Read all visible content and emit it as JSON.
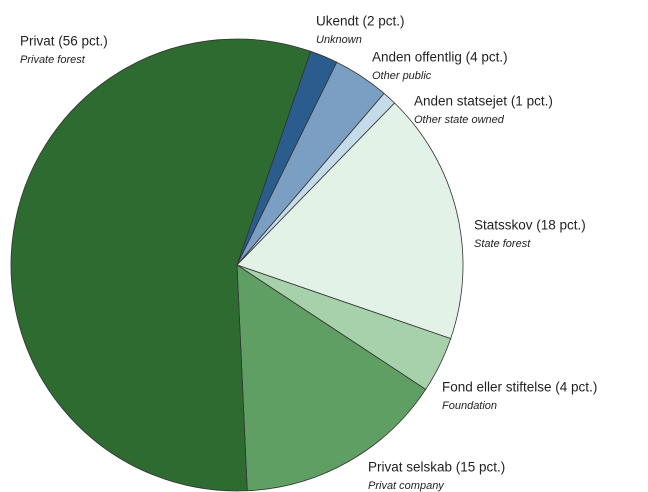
{
  "chart_data": {
    "type": "pie",
    "categories": [
      "Ukendt (2 pct.)",
      "Anden offentlig (4 pct.)",
      "Anden statsejet (1 pct.)",
      "Statsskov (18 pct.)",
      "Fond eller stiftelse (4 pct.)",
      "Privat selskab (15 pct.)",
      "Privat (56 pct.)"
    ],
    "translations": [
      "Unknown",
      "Other public",
      "Other state owned",
      "State forest",
      "Foundation",
      "Privat company",
      "Private forest"
    ],
    "values": [
      2,
      4,
      1,
      18,
      4,
      15,
      56
    ],
    "colors": [
      "#2b5c8e",
      "#7b9fc3",
      "#c6dbea",
      "#e2f2e6",
      "#a7d1aa",
      "#5f9f63",
      "#2e6b31"
    ]
  }
}
